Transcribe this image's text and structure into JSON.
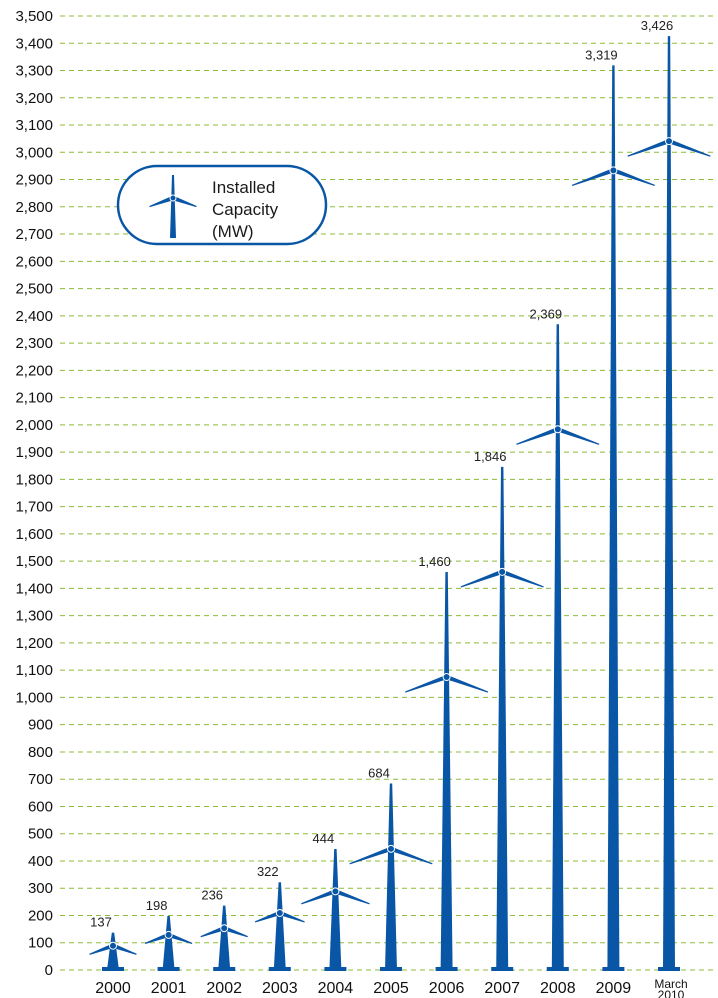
{
  "chart_data": {
    "type": "bar",
    "title": "",
    "xlabel": "",
    "ylabel": "",
    "ylim": [
      0,
      3500
    ],
    "y_tick_step": 100,
    "grid": true,
    "categories": [
      "2000",
      "2001",
      "2002",
      "2003",
      "2004",
      "2005",
      "2006",
      "2007",
      "2008",
      "2009",
      "March 2010"
    ],
    "category_labels": [
      [
        "2000"
      ],
      [
        "2001"
      ],
      [
        "2002"
      ],
      [
        "2003"
      ],
      [
        "2004"
      ],
      [
        "2005"
      ],
      [
        "2006"
      ],
      [
        "2007"
      ],
      [
        "2008"
      ],
      [
        "2009"
      ],
      [
        "March",
        "2010"
      ]
    ],
    "values": [
      137,
      198,
      236,
      322,
      444,
      684,
      1460,
      1846,
      2369,
      3319,
      3426
    ],
    "value_labels": [
      "137",
      "198",
      "236",
      "322",
      "444",
      "684",
      "1,460",
      "1,846",
      "2,369",
      "3,319",
      "3,426"
    ],
    "y_tick_labels": [
      "0",
      "100",
      "200",
      "300",
      "400",
      "500",
      "600",
      "700",
      "800",
      "900",
      "1,000",
      "1,100",
      "1,200",
      "1,300",
      "1,400",
      "1,500",
      "1,600",
      "1,700",
      "1,800",
      "1,900",
      "2,000",
      "2,100",
      "2,200",
      "2,300",
      "2,400",
      "2,500",
      "2,600",
      "2,700",
      "2,800",
      "2,900",
      "3,000",
      "3,100",
      "3,200",
      "3,300",
      "3,400",
      "3,500"
    ],
    "legend": {
      "lines": [
        "Installed",
        "Capacity",
        "(MW)"
      ],
      "position": "top-left",
      "icon": "wind-turbine-icon"
    },
    "mark_icon": "wind-turbine-icon"
  },
  "colors": {
    "turbine": "#0a56a6",
    "gridline": "#8dbb3a",
    "legend_border": "#0a56a6",
    "text": "#111111"
  }
}
